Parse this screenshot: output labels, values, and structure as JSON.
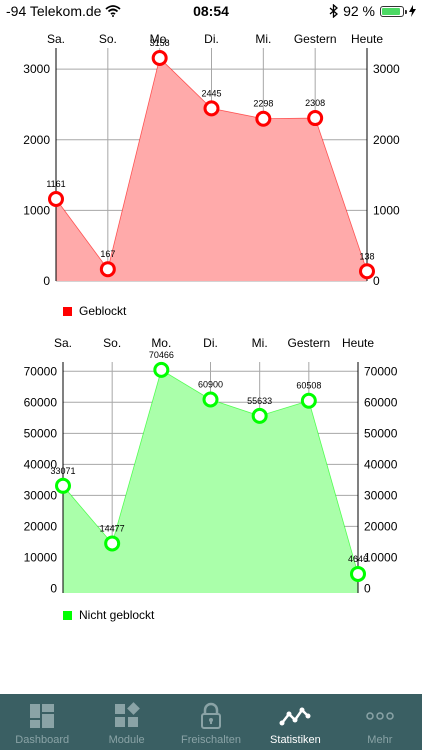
{
  "status_bar": {
    "carrier": "-94 Telekom.de",
    "time": "08:54",
    "battery": "92 %",
    "battery_level": 0.92
  },
  "chart_data": [
    {
      "type": "area",
      "categories": [
        "Sa.",
        "So.",
        "Mo.",
        "Di.",
        "Mi.",
        "Gestern",
        "Heute"
      ],
      "series": [
        {
          "name": "Geblockt",
          "values": [
            1161,
            167,
            3158,
            2445,
            2298,
            2308,
            138
          ],
          "color": "#ff0000"
        }
      ],
      "yticks": [
        0,
        1000,
        2000,
        3000
      ],
      "ylim": [
        0,
        3300
      ],
      "fill_color": "#ffaaaa",
      "grid": true,
      "legend": "bottom-left"
    },
    {
      "type": "area",
      "categories": [
        "Sa.",
        "So.",
        "Mo.",
        "Di.",
        "Mi.",
        "Gestern",
        "Heute"
      ],
      "series": [
        {
          "name": "Nicht geblockt",
          "values": [
            33071,
            14477,
            70466,
            60900,
            55633,
            60508,
            4646
          ],
          "color": "#00ff00"
        }
      ],
      "yticks": [
        0,
        10000,
        20000,
        30000,
        40000,
        50000,
        60000,
        70000
      ],
      "ylim": [
        -1500,
        73000
      ],
      "fill_color": "#aaffaa",
      "grid": true,
      "legend": "bottom-left"
    }
  ],
  "tabs": [
    {
      "label": "Dashboard",
      "icon": "dashboard-icon",
      "active": false
    },
    {
      "label": "Module",
      "icon": "module-icon",
      "active": false
    },
    {
      "label": "Freischalten",
      "icon": "lock-icon",
      "active": false
    },
    {
      "label": "Statistiken",
      "icon": "statistics-icon",
      "active": true
    },
    {
      "label": "Mehr",
      "icon": "more-icon",
      "active": false
    }
  ]
}
